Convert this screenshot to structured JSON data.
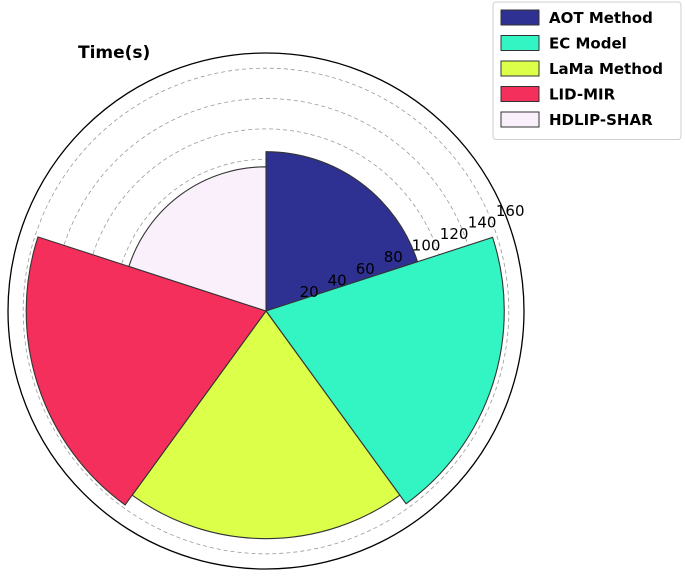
{
  "chart_data": {
    "type": "polar-bar",
    "ylabel": "Time(s)",
    "rlim": [
      0,
      170
    ],
    "rticks": [
      20,
      40,
      60,
      80,
      100,
      120,
      140,
      160
    ],
    "grid": true,
    "legend_position": "top-right",
    "series": [
      {
        "name": "AOT Method",
        "value": 105,
        "color": "#2e3192"
      },
      {
        "name": "EC Model",
        "value": 157,
        "color": "#33f5c4"
      },
      {
        "name": "LaMa Method",
        "value": 150,
        "color": "#dcff4a"
      },
      {
        "name": "LID-MIR",
        "value": 158,
        "color": "#f52f5c"
      },
      {
        "name": "HDLIP-SHAR",
        "value": 95,
        "color": "#f9f0fb"
      }
    ]
  }
}
